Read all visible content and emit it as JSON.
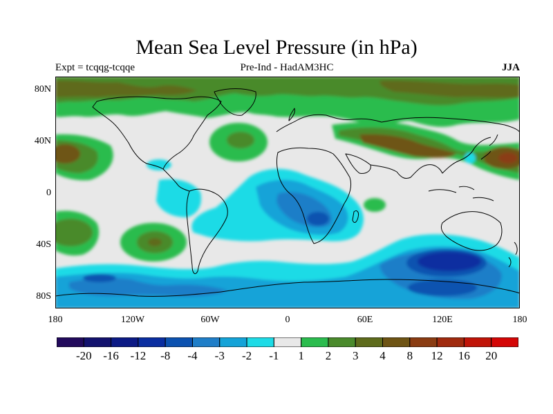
{
  "title": "Mean Sea Level Pressure (in hPa)",
  "subtitle_left": "Expt = tcqqg-tcqqe",
  "subtitle_center": "Pre-Ind - HadAM3HC",
  "subtitle_right": "JJA",
  "y_axis": {
    "ticks": [
      "80N",
      "40N",
      "0",
      "40S",
      "80S"
    ],
    "lat": [
      80,
      40,
      0,
      -40,
      -80
    ]
  },
  "x_axis": {
    "ticks": [
      "180",
      "120W",
      "60W",
      "0",
      "60E",
      "120E",
      "180"
    ],
    "lon": [
      -180,
      -120,
      -60,
      0,
      60,
      120,
      180
    ]
  },
  "colorbar": {
    "colors": [
      "#220a5c",
      "#13126e",
      "#0c1a85",
      "#0a2ea0",
      "#0c52b0",
      "#1f7ec8",
      "#14a3d8",
      "#1ddbe6",
      "#e8e8e8",
      "#2bbc4e",
      "#4a8a2c",
      "#5e6b1c",
      "#6e5414",
      "#8a3c12",
      "#a02a0e",
      "#c01408",
      "#d40606"
    ],
    "labels": [
      "-20",
      "-16",
      "-12",
      "-8",
      "-4",
      "-3",
      "-2",
      "-1",
      "1",
      "2",
      "3",
      "4",
      "8",
      "12",
      "16",
      "20"
    ]
  },
  "map_colors": {
    "background": "#e8e8e8",
    "coastline": "#000000"
  }
}
